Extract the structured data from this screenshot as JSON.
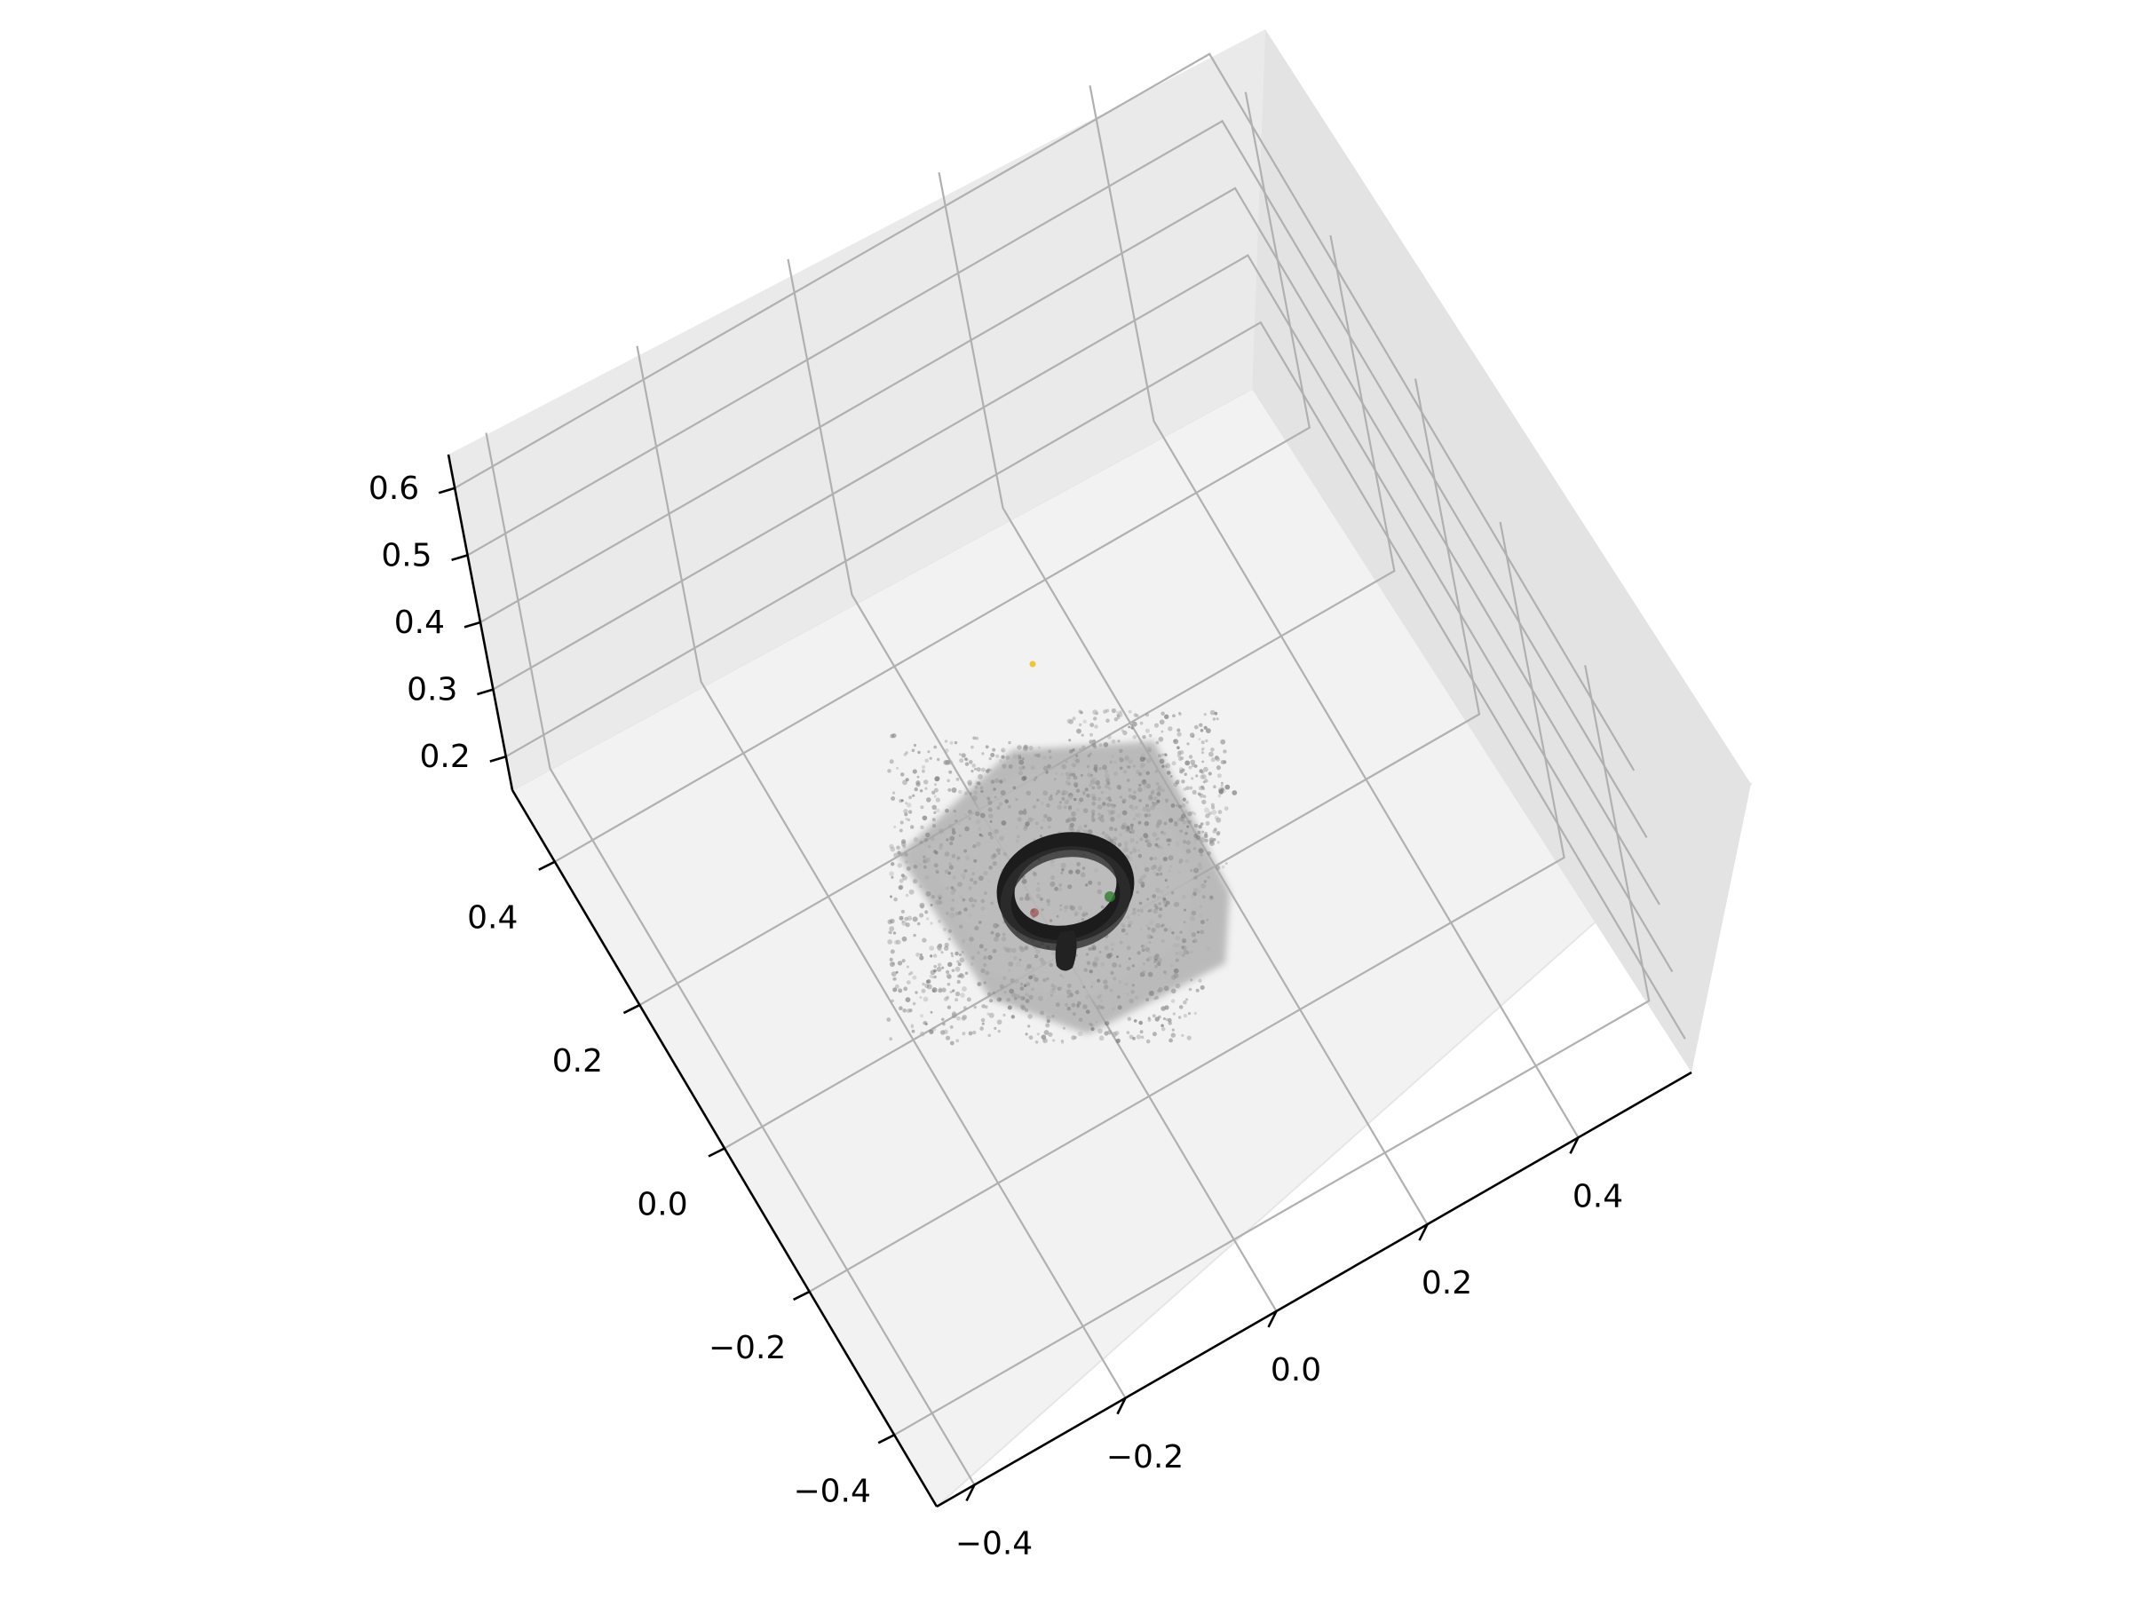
{
  "chart_data": {
    "type": "scatter3d",
    "title": "",
    "xlabel": "",
    "ylabel": "",
    "zlabel": "",
    "x_ticks": [
      "−0.4",
      "−0.2",
      "0.0",
      "0.2",
      "0.4"
    ],
    "y_ticks": [
      "−0.4",
      "−0.2",
      "0.0",
      "0.2",
      "0.4"
    ],
    "z_ticks": [
      "0.2",
      "0.3",
      "0.4",
      "0.5",
      "0.6"
    ],
    "xlim": [
      -0.45,
      0.55
    ],
    "ylim": [
      -0.5,
      0.5
    ],
    "zlim": [
      0.15,
      0.65
    ],
    "grid": true,
    "series": [
      {
        "name": "table point cloud",
        "description": "dense grey point cloud of a flat tabletop patch around the origin",
        "x_range": [
          -0.1,
          0.15
        ],
        "y_range": [
          -0.05,
          0.25
        ],
        "z_approx": 0.15,
        "color": "#9a9a9a"
      },
      {
        "name": "ring object",
        "description": "dark torus-shaped object near center",
        "center": [
          0.02,
          0.1
        ],
        "z_approx": 0.18,
        "color": "#2a2a2a"
      },
      {
        "name": "marker",
        "description": "single yellow point above the cloud",
        "position": [
          0.0,
          0.35,
          0.15
        ],
        "color": "#f4c430"
      }
    ]
  }
}
